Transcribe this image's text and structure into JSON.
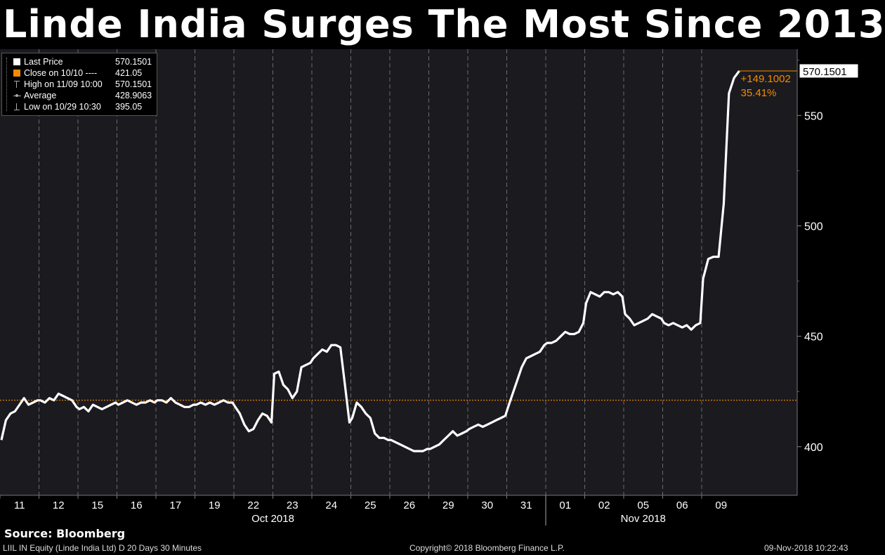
{
  "title": "Linde India Surges The Most Since 2013",
  "legend": {
    "rows": [
      {
        "label": "Last Price",
        "value": "570.1501",
        "color": "#ffffff"
      },
      {
        "label": "Close on 10/10 ----",
        "value": "421.05",
        "color": "#f28c00"
      },
      {
        "label": "High on 11/09 10:00",
        "value": "570.1501",
        "color": "#ffffff"
      },
      {
        "label": "Average",
        "value": "428.9063",
        "color": "#ffffff"
      },
      {
        "label": "Low on 10/29 10:30",
        "value": "395.05",
        "color": "#ffffff"
      }
    ]
  },
  "annotations": {
    "last_price_tag": "570.1501",
    "change_abs": "+149.1002",
    "change_pct": "35.41%"
  },
  "footer": {
    "source": "Source: Bloomberg",
    "ticker_info": "LIIL IN Equity (Linde India Ltd) D 20 Days 30 Minutes",
    "copyright": "Copyright© 2018 Bloomberg Finance L.P.",
    "timestamp": "09-Nov-2018 10:22:43"
  },
  "chart_data": {
    "type": "line",
    "title": "Linde India Surges The Most Since 2013",
    "xlabel": "",
    "ylabel": "",
    "ylim": [
      378,
      580
    ],
    "yticks": [
      400,
      450,
      500,
      550
    ],
    "reference_line": {
      "label": "Close on 10/10",
      "value": 421.05,
      "color": "#f28c00"
    },
    "categories": [
      "11",
      "12",
      "15",
      "16",
      "17",
      "19",
      "22",
      "23",
      "24",
      "25",
      "26",
      "29",
      "30",
      "31",
      "01",
      "02",
      "05",
      "06",
      "09"
    ],
    "month_labels": [
      {
        "label": "Oct 2018",
        "from": "11",
        "to": "31"
      },
      {
        "label": "Nov 2018",
        "from": "01",
        "to": "09"
      }
    ],
    "series": [
      {
        "color": "#ffffff",
        "values": [
          [
            403,
            412,
            415,
            416,
            419,
            422,
            419,
            420,
            421
          ],
          [
            421,
            420,
            422,
            421,
            424,
            423,
            422,
            421,
            418
          ],
          [
            417,
            418,
            416,
            419,
            418,
            417,
            418,
            419,
            420
          ],
          [
            419,
            420,
            421,
            420,
            419,
            420,
            420,
            421,
            420
          ],
          [
            421,
            421,
            420,
            422,
            420,
            419,
            418,
            418,
            419
          ],
          [
            419,
            420,
            419,
            420,
            419,
            420,
            421,
            420,
            420
          ],
          [
            418,
            415,
            410,
            407,
            408,
            412,
            415,
            414,
            411
          ],
          [
            433,
            434,
            428,
            426,
            422,
            425,
            436,
            437,
            438
          ],
          [
            440,
            442,
            444,
            443,
            446,
            446,
            445,
            428,
            411
          ],
          [
            413,
            420,
            418,
            415,
            413,
            406,
            404,
            404,
            403
          ],
          [
            403,
            402,
            401,
            400,
            399,
            398,
            398,
            398,
            399
          ],
          [
            399,
            400,
            401,
            403,
            405,
            407,
            405,
            406,
            407
          ],
          [
            408,
            409,
            410,
            409,
            410,
            411,
            412,
            413,
            414
          ],
          [
            418,
            424,
            430,
            436,
            440,
            441,
            442,
            443,
            446
          ],
          [
            447,
            447,
            448,
            450,
            452,
            451,
            451,
            452,
            456
          ],
          [
            465,
            470,
            469,
            468,
            470,
            470,
            469,
            470,
            468
          ],
          [
            460,
            458,
            455,
            456,
            457,
            458,
            460,
            459,
            458
          ],
          [
            456,
            455,
            456,
            455,
            454,
            455,
            453,
            455,
            456
          ],
          [
            476,
            485,
            486,
            486,
            510,
            560,
            567,
            570.1501
          ]
        ]
      }
    ]
  }
}
